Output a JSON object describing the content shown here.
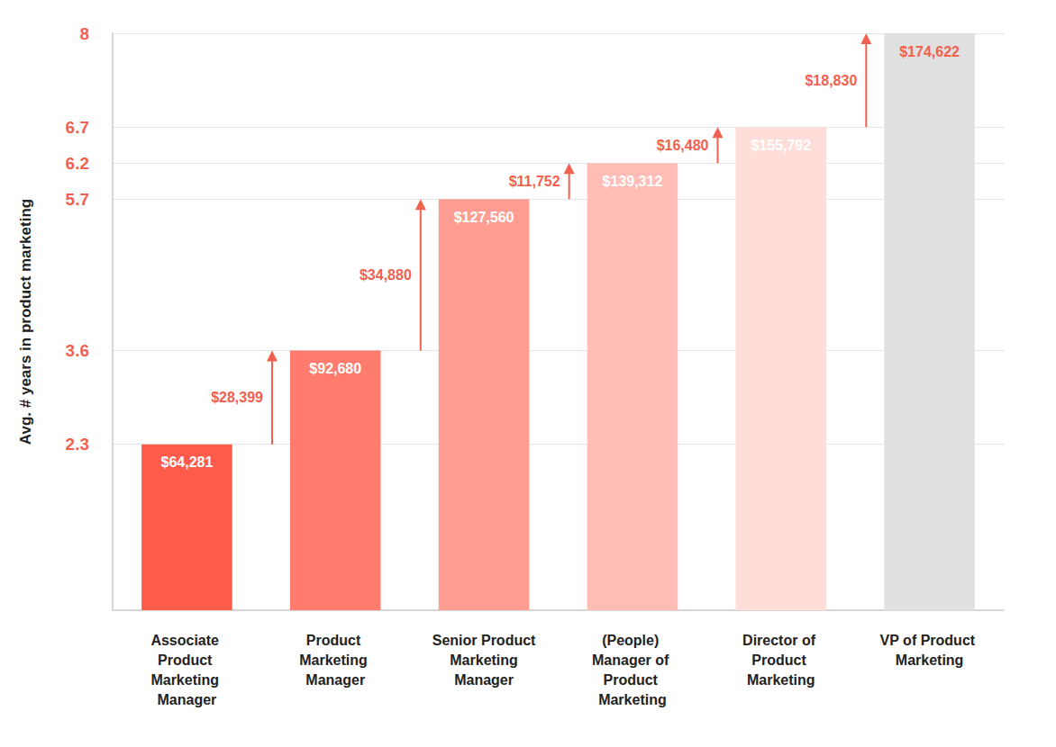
{
  "chart_data": {
    "type": "bar",
    "y_label": "Avg. # years in product marketing",
    "categories": [
      "Associate Product Marketing Manager",
      "Product Marketing Manager",
      "Senior Product Marketing Manager",
      "(People) Manager of Product Marketing",
      "Director of Product Marketing",
      "VP of Product Marketing"
    ],
    "values": [
      2.3,
      3.6,
      5.7,
      6.2,
      6.7,
      8
    ],
    "colors": [
      "#fe5b4b",
      "#ff7b6e",
      "#ff9d93",
      "#ffbdb6",
      "#ffddd9",
      "#e0e0e0"
    ],
    "bar_labels": [
      "$64,281",
      "$92,680",
      "$127,560",
      "$139,312",
      "$155,792",
      "$174,622"
    ],
    "increase_labels": [
      "$28,399",
      "$34,880",
      "$11,752",
      "$16,480",
      "$18,830"
    ],
    "ylim": [
      0,
      8
    ],
    "yticks": [
      2.3,
      3.6,
      5.7,
      6.2,
      6.7,
      8
    ],
    "grid": true
  }
}
